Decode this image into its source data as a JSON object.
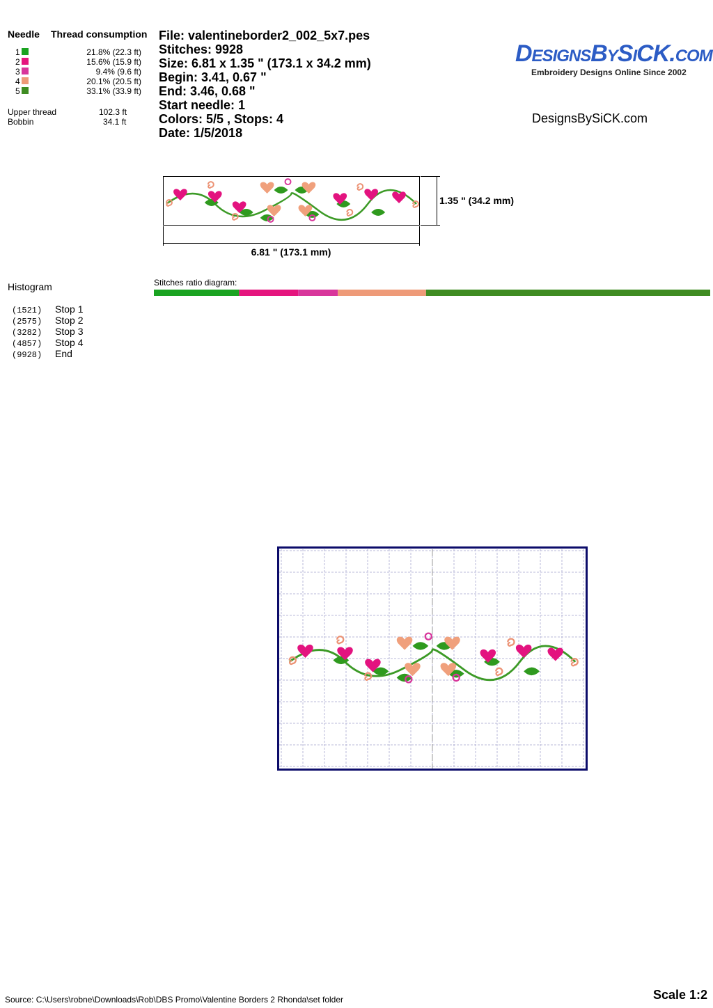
{
  "needle_table": {
    "header_needle": "Needle",
    "header_consumption": "Thread consumption",
    "needles": [
      {
        "number": "1",
        "color": "#1aa321",
        "consumption": "21.8% (22.3 ft)"
      },
      {
        "number": "2",
        "color": "#e5157e",
        "consumption": "15.6% (15.9 ft)"
      },
      {
        "number": "3",
        "color": "#d8369b",
        "consumption": "9.4% (9.6 ft)"
      },
      {
        "number": "4",
        "color": "#ee9a78",
        "consumption": "20.1% (20.5 ft)"
      },
      {
        "number": "5",
        "color": "#3f8c22",
        "consumption": "33.1% (33.9 ft)"
      }
    ],
    "upper_thread_label": "Upper thread",
    "upper_thread": "102.3 ft",
    "bobbin_label": "Bobbin",
    "bobbin": "34.1 ft"
  },
  "info": [
    "File: valentineborder2_002_5x7.pes",
    "Stitches: 9928",
    "Size: 6.81 x 1.35 \" (173.1 x 34.2 mm)",
    "Begin: 3.41, 0.67 \"",
    "End: 3.46, 0.68 \"",
    "Start needle: 1",
    "Colors: 5/5 , Stops: 4",
    "Date: 1/5/2018"
  ],
  "logo": {
    "name": "DesignsBySiCK.com",
    "tagline": "Embroidery Designs Online Since 2002"
  },
  "site": "DesignsBySiCK.com",
  "preview": {
    "height_label": "1.35 \" (34.2 mm)",
    "width_label": "6.81 \" (173.1 mm)"
  },
  "ratio_title": "Stitches ratio diagram:",
  "histogram": {
    "title": "Histogram",
    "stops": [
      {
        "count": 1521,
        "count_label": "(1521)",
        "name": "Stop 1"
      },
      {
        "count": 2575,
        "count_label": "(2575)",
        "name": "Stop 2"
      },
      {
        "count": 3282,
        "count_label": "(3282)",
        "name": "Stop 3"
      },
      {
        "count": 4857,
        "count_label": "(4857)",
        "name": "Stop 4"
      },
      {
        "count": 9928,
        "count_label": "(9928)",
        "name": "End"
      }
    ]
  },
  "source": "Source: C:\\Users\\robne\\Downloads\\Rob\\DBS Promo\\Valentine Borders 2 Rhonda\\set folder",
  "scale": "Scale 1:2"
}
